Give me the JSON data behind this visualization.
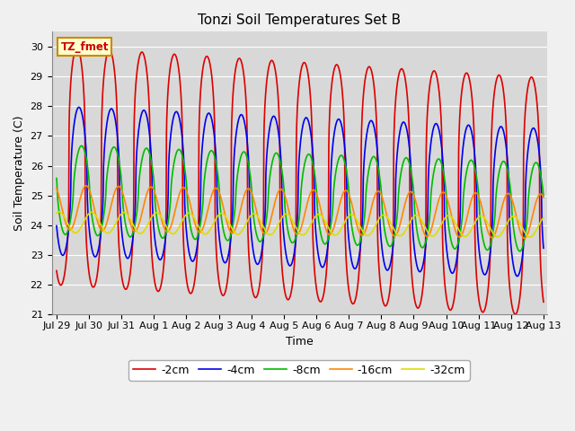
{
  "title": "Tonzi Soil Temperatures Set B",
  "xlabel": "Time",
  "ylabel": "Soil Temperature (C)",
  "ylim": [
    21.0,
    30.5
  ],
  "ytick_min": 21.0,
  "ytick_max": 30.0,
  "ytick_step": 1.0,
  "bg_color": "#d8d8d8",
  "fig_bg": "#f0f0f0",
  "annotation_text": "TZ_fmet",
  "annotation_bg": "#ffffcc",
  "annotation_border": "#cc8800",
  "series": [
    {
      "label": "-2cm",
      "color": "#dd0000",
      "amplitude": 4.0,
      "mean": 26.0,
      "phase_shift": 0.0,
      "sharpness": 3.0,
      "trend": -0.07
    },
    {
      "label": "-4cm",
      "color": "#0000ee",
      "amplitude": 2.5,
      "mean": 25.5,
      "phase_shift": 0.06,
      "sharpness": 2.0,
      "trend": -0.05
    },
    {
      "label": "-8cm",
      "color": "#00bb00",
      "amplitude": 1.5,
      "mean": 25.2,
      "phase_shift": 0.14,
      "sharpness": 1.5,
      "trend": -0.04
    },
    {
      "label": "-16cm",
      "color": "#ff8800",
      "amplitude": 0.75,
      "mean": 24.6,
      "phase_shift": 0.28,
      "sharpness": 1.0,
      "trend": -0.02
    },
    {
      "label": "-32cm",
      "color": "#dddd00",
      "amplitude": 0.35,
      "mean": 24.1,
      "phase_shift": 0.45,
      "sharpness": 1.0,
      "trend": -0.01
    }
  ],
  "xtick_labels": [
    "Jul 29",
    "Jul 30",
    "Jul 31",
    "Aug 1",
    "Aug 2",
    "Aug 3",
    "Aug 4",
    "Aug 5",
    "Aug 6",
    "Aug 7",
    "Aug 8",
    "Aug 9",
    "Aug 10",
    "Aug 11",
    "Aug 12",
    "Aug 13"
  ],
  "xtick_positions": [
    0,
    1,
    2,
    3,
    4,
    5,
    6,
    7,
    8,
    9,
    10,
    11,
    12,
    13,
    14,
    15
  ],
  "x_start": 0,
  "x_end": 15,
  "samples_per_day": 96,
  "figsize": [
    6.4,
    4.8
  ],
  "dpi": 100
}
